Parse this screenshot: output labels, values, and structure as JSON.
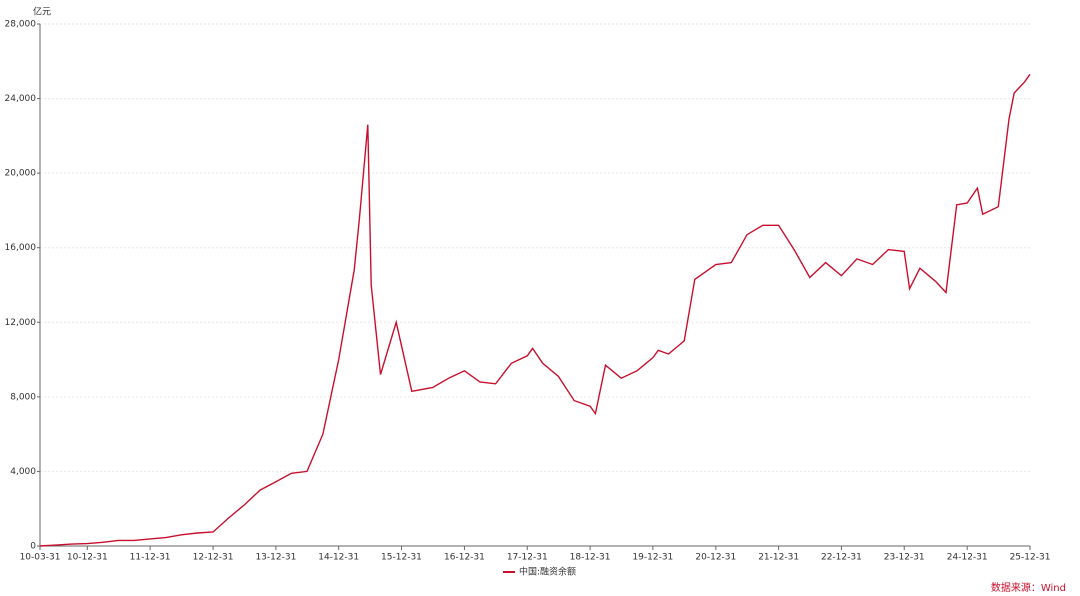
{
  "chart_data": {
    "type": "line",
    "y_unit_label": "亿元",
    "source": "数据来源：Wind",
    "x": [
      "10-03-31",
      "10-06-30",
      "10-09-30",
      "10-12-31",
      "11-03-31",
      "11-06-30",
      "11-09-30",
      "11-12-31",
      "12-03-31",
      "12-06-30",
      "12-09-30",
      "12-12-31",
      "13-03-31",
      "13-06-30",
      "13-09-30",
      "13-12-31",
      "14-03-31",
      "14-06-30",
      "14-09-30",
      "14-12-31",
      "15-03-31",
      "15-04-30",
      "15-06-18",
      "15-07-08",
      "15-08-31",
      "15-11-30",
      "16-02-29",
      "16-06-30",
      "16-09-30",
      "16-12-31",
      "17-03-31",
      "17-06-30",
      "17-09-30",
      "17-12-31",
      "18-01-31",
      "18-03-31",
      "18-06-30",
      "18-09-30",
      "18-12-31",
      "19-01-31",
      "19-03-31",
      "19-06-30",
      "19-09-30",
      "19-12-31",
      "20-01-31",
      "20-03-31",
      "20-06-30",
      "20-08-31",
      "20-12-31",
      "21-03-31",
      "21-06-30",
      "21-09-30",
      "21-12-31",
      "22-03-31",
      "22-06-30",
      "22-09-30",
      "22-12-31",
      "23-03-31",
      "23-06-30",
      "23-09-30",
      "23-12-31",
      "24-01-31",
      "24-03-31",
      "24-06-30",
      "24-08-30",
      "24-10-31",
      "24-12-31",
      "25-02-28",
      "25-03-31",
      "25-06-30",
      "25-08-31",
      "25-09-30",
      "25-11-30",
      "25-12-31"
    ],
    "series": [
      {
        "name": "中国:融资余额",
        "color": "#c8102e",
        "values": [
          0,
          50,
          100,
          130,
          200,
          300,
          300,
          380,
          450,
          600,
          700,
          750,
          1500,
          2200,
          3000,
          3450,
          3900,
          4000,
          6000,
          10000,
          14800,
          17500,
          22600,
          14000,
          9200,
          12000,
          8300,
          8500,
          9000,
          9400,
          8800,
          8700,
          9800,
          10200,
          10600,
          9800,
          9100,
          7800,
          7500,
          7100,
          9700,
          9000,
          9400,
          10100,
          10500,
          10300,
          11000,
          14300,
          15100,
          15200,
          16700,
          17200,
          17200,
          15900,
          14400,
          15200,
          14500,
          15400,
          15100,
          15900,
          15800,
          13800,
          14900,
          14200,
          13600,
          18300,
          18400,
          19200,
          17800,
          18200,
          22900,
          24300,
          24900,
          25300
        ]
      }
    ],
    "xlim": [
      "10-03-31",
      "25-12-31"
    ],
    "xticks": [
      "10-03-31",
      "10-12-31",
      "11-12-31",
      "12-12-31",
      "13-12-31",
      "14-12-31",
      "15-12-31",
      "16-12-31",
      "17-12-31",
      "18-12-31",
      "19-12-31",
      "20-12-31",
      "21-12-31",
      "22-12-31",
      "23-12-31",
      "24-12-31",
      "25-12-31"
    ],
    "ylim": [
      0,
      28000
    ],
    "yticks": [
      0,
      {
        "value": 4000,
        "label": "4,000"
      },
      {
        "value": 8000,
        "label": "8,000"
      },
      {
        "value": 12000,
        "label": "12,000"
      },
      {
        "value": 16000,
        "label": "16,000"
      },
      {
        "value": 20000,
        "label": "20,000"
      },
      {
        "value": 24000,
        "label": "24,000"
      },
      {
        "value": 28000,
        "label": "28,000"
      }
    ],
    "grid": true
  }
}
